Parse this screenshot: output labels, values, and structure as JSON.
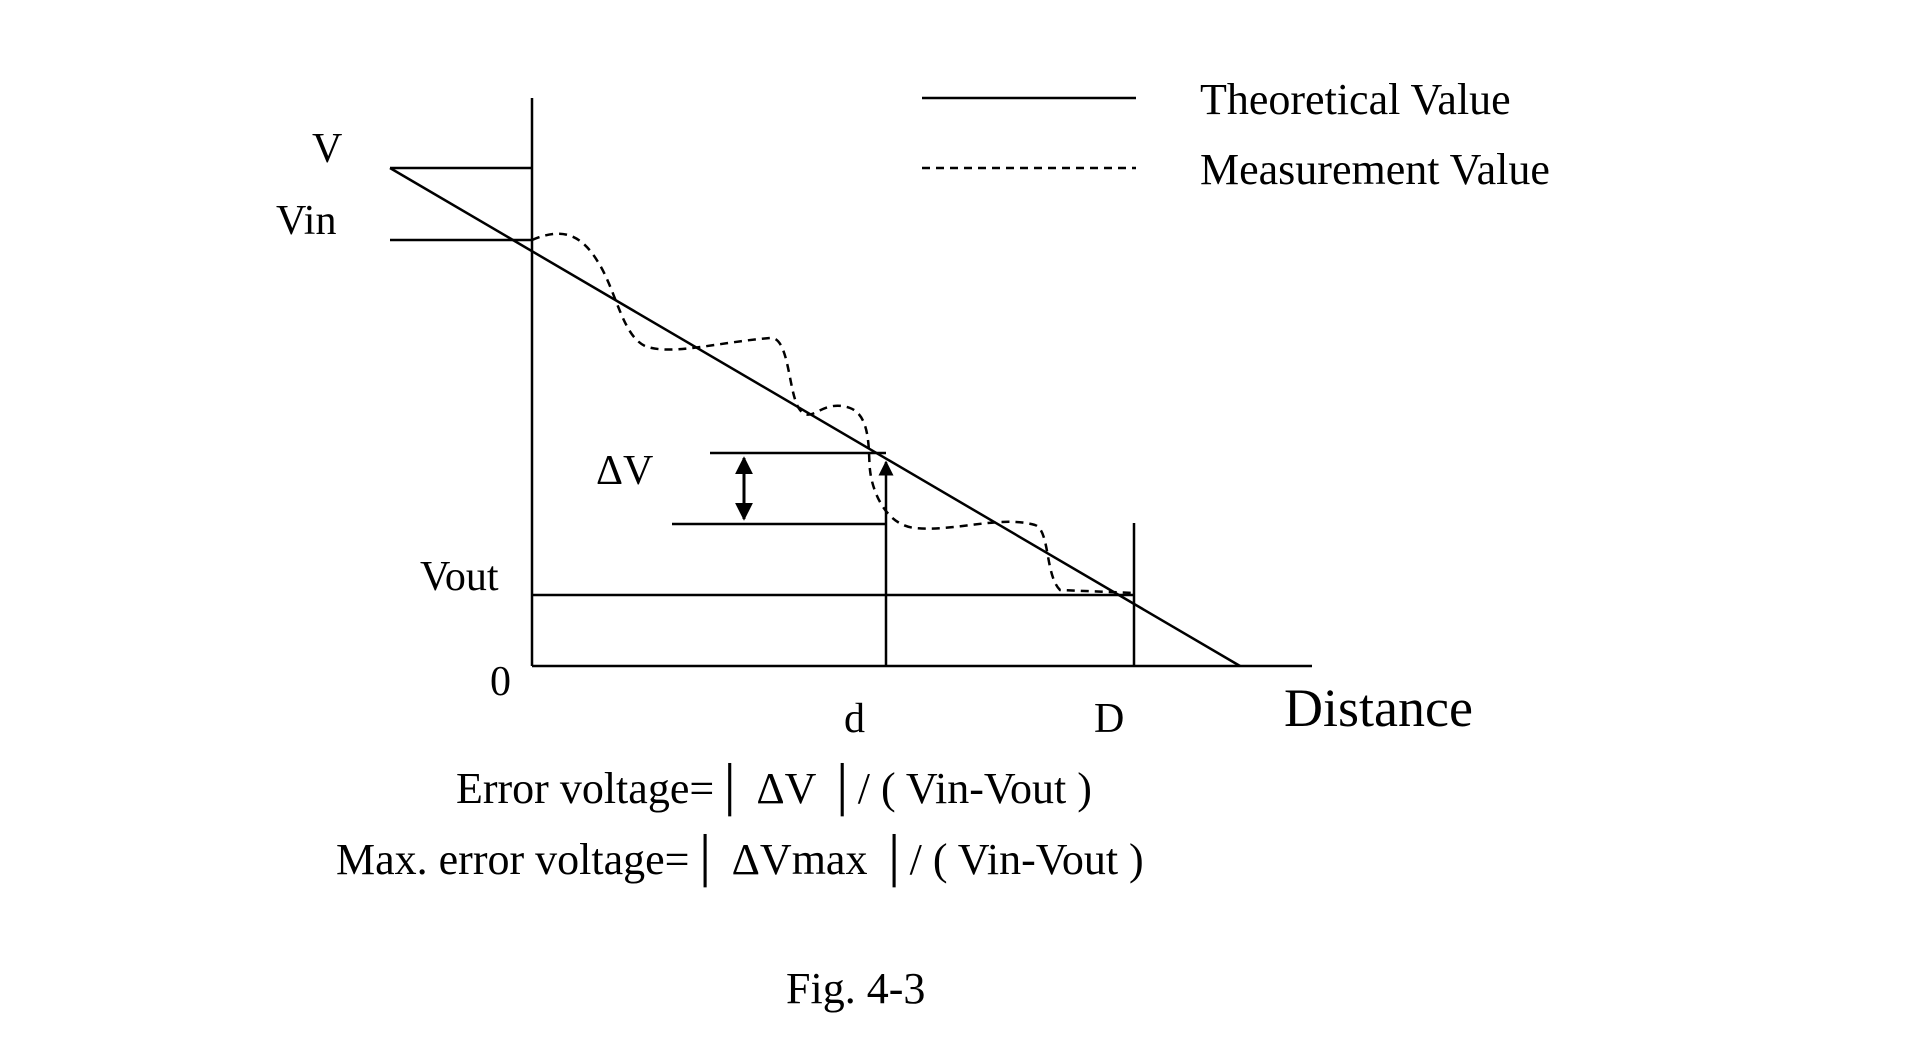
{
  "legend": {
    "theoretical": "Theoretical Value",
    "measurement": "Measurement Value"
  },
  "labels": {
    "v": "V",
    "vin": "Vin",
    "vout": "Vout",
    "zero": "0",
    "delta_v": "ΔV",
    "d": "d",
    "big_d": "D",
    "distance": "Distance"
  },
  "formulas": {
    "error": "Error voltage=│ ΔV │/ ( Vin-Vout )",
    "max_error": "Max. error voltage=│ ΔVmax │/ ( Vin-Vout )"
  },
  "caption": "Fig. 4-3",
  "colors": {
    "ink": "#000000",
    "background": "#ffffff"
  }
}
